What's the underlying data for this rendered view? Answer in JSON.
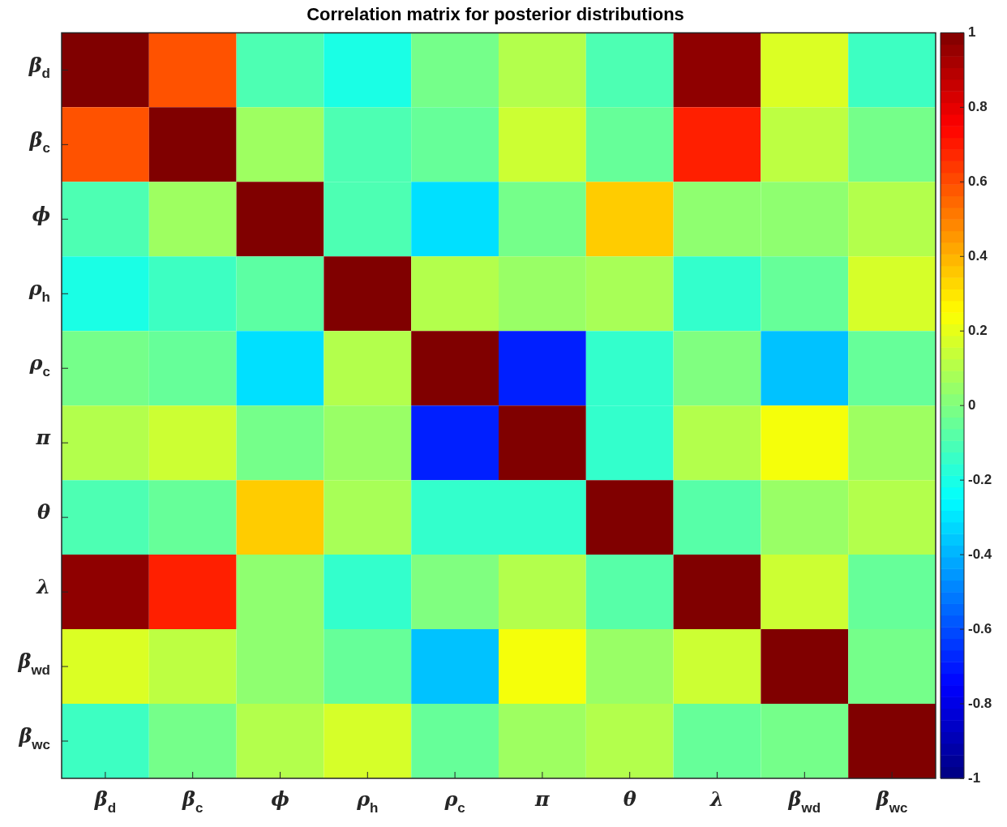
{
  "chart_data": {
    "type": "heatmap",
    "title": "Correlation matrix for posterior distributions",
    "categories": [
      "β$_{d}$",
      "β$_{c}$",
      "ϕ",
      "ρ$_{h}$",
      "ρ$_{c}$",
      "π",
      "θ",
      "λ",
      "β$_{wd}$",
      "β$_{wc}$"
    ],
    "y_categories": [
      "β$_{d}$",
      "β$_{c}$",
      "ϕ",
      "ρ$_{h}$",
      "ρ$_{c}$",
      "π",
      "θ",
      "λ",
      "β$_{wd}$",
      "β$_{wc}$"
    ],
    "cells": [
      [
        1,
        0.59,
        -0.1,
        -0.2,
        -0.02,
        0.1,
        -0.1,
        0.97,
        0.18,
        -0.13
      ],
      [
        0.59,
        1,
        0.06,
        -0.1,
        -0.05,
        0.15,
        -0.05,
        0.69,
        0.12,
        -0.02
      ],
      [
        -0.1,
        0.06,
        1,
        -0.1,
        -0.31,
        -0.02,
        0.35,
        0.03,
        0.03,
        0.1
      ],
      [
        -0.2,
        -0.13,
        -0.07,
        1,
        0.1,
        0.05,
        0.08,
        -0.15,
        -0.05,
        0.17
      ],
      [
        -0.02,
        -0.05,
        -0.31,
        0.1,
        1,
        -0.69,
        -0.15,
        0,
        -0.37,
        -0.05
      ],
      [
        0.1,
        0.15,
        -0.02,
        0.05,
        -0.69,
        1,
        -0.15,
        0.1,
        0.23,
        0.06
      ],
      [
        -0.1,
        -0.05,
        0.35,
        0.08,
        -0.15,
        -0.15,
        1,
        -0.08,
        0.05,
        0.1
      ],
      [
        0.97,
        0.69,
        0.03,
        -0.15,
        0,
        0.1,
        -0.08,
        1,
        0.15,
        -0.05
      ],
      [
        0.18,
        0.12,
        0.03,
        -0.05,
        -0.37,
        0.23,
        0.05,
        0.15,
        1,
        -0.02
      ],
      [
        -0.13,
        -0.02,
        0.1,
        0.17,
        -0.05,
        0.06,
        0.1,
        -0.05,
        -0.02,
        1
      ]
    ],
    "clim": [
      -1,
      1
    ],
    "cticks": [
      -1,
      -0.8,
      -0.6,
      -0.4,
      -0.2,
      0,
      0.2,
      0.4,
      0.6,
      0.8,
      1
    ]
  }
}
